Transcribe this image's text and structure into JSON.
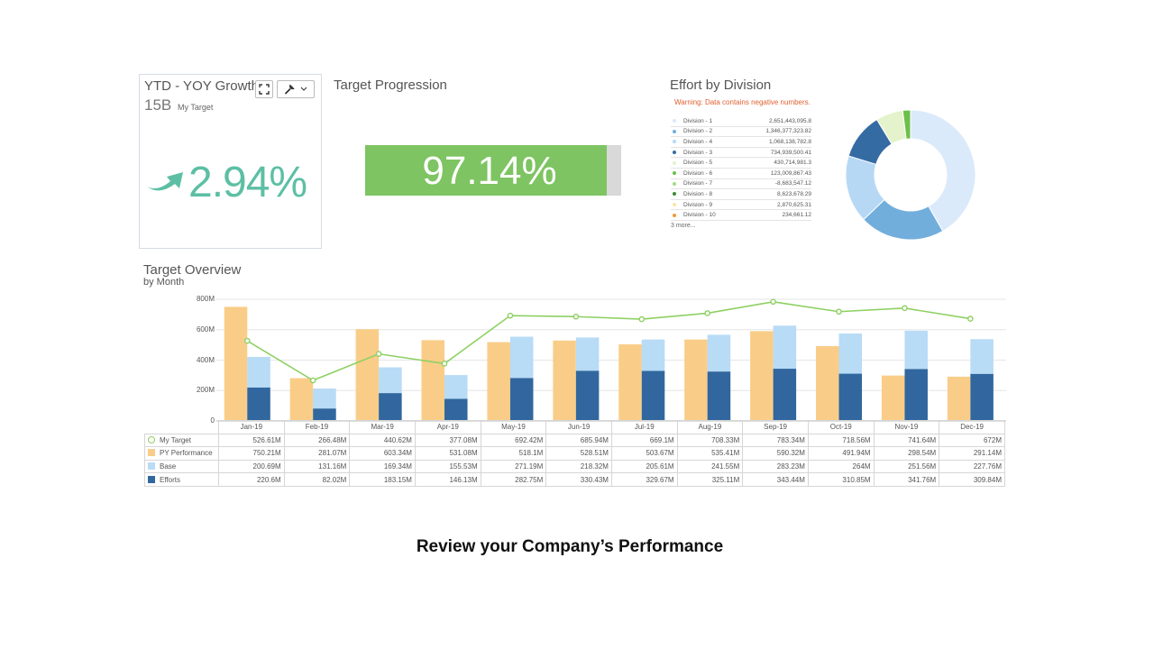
{
  "kpi": {
    "title": "YTD - YOY Growth",
    "target_value": "15B",
    "target_label": "My Target",
    "value": "2.94%",
    "color": "#5cbfa4"
  },
  "progression": {
    "title": "Target Progression",
    "value_label": "97.14%",
    "fraction": 0.9714,
    "fill_color": "#7ec462"
  },
  "effort": {
    "title": "Effort by Division",
    "warning": "Warning: Data contains negative numbers.",
    "more_label": "3 more...",
    "divisions": [
      {
        "name": "Division - 1",
        "value": "2,651,443,095.8",
        "color": "#dbeafa"
      },
      {
        "name": "Division - 2",
        "value": "1,346,377,323.82",
        "color": "#72aedc"
      },
      {
        "name": "Division - 4",
        "value": "1,068,138,782.8",
        "color": "#b6d8f5"
      },
      {
        "name": "Division - 3",
        "value": "734,939,500.41",
        "color": "#356ba3"
      },
      {
        "name": "Division - 5",
        "value": "430,714,981.3",
        "color": "#e4f3cc"
      },
      {
        "name": "Division - 6",
        "value": "123,009,867.43",
        "color": "#6cc04a"
      },
      {
        "name": "Division - 7",
        "value": "-8,683,547.12",
        "color": "#a6db84"
      },
      {
        "name": "Division - 8",
        "value": "8,623,678.29",
        "color": "#3c8c32"
      },
      {
        "name": "Division - 9",
        "value": "2,870,625.31",
        "color": "#fbe2aa"
      },
      {
        "name": "Division - 10",
        "value": "234,661.12",
        "color": "#f0983c"
      }
    ],
    "donut_values": [
      2651443095.8,
      1346377323.82,
      1068138782.8,
      734939500.41,
      430714981.3,
      123009867.43
    ]
  },
  "overview": {
    "title": "Target Overview",
    "subtitle": "by Month",
    "table_rows": [
      {
        "label": "My Target",
        "key": "target",
        "swatch": "ring"
      },
      {
        "label": "PY Performance",
        "key": "py",
        "swatch": "#f9cd88"
      },
      {
        "label": "Base",
        "key": "base",
        "swatch": "#b8dbf6"
      },
      {
        "label": "Efforts",
        "key": "efforts",
        "swatch": "#31679e"
      }
    ]
  },
  "chart_data": {
    "type": "bar",
    "categories": [
      "Jan-19",
      "Feb-19",
      "Mar-19",
      "Apr-19",
      "May-19",
      "Jun-19",
      "Jul-19",
      "Aug-19",
      "Sep-19",
      "Oct-19",
      "Nov-19",
      "Dec-19"
    ],
    "ylim": [
      0,
      800000000
    ],
    "yticks": [
      0,
      200000000,
      400000000,
      600000000,
      800000000
    ],
    "ytick_labels": [
      "0",
      "200M",
      "400M",
      "600M",
      "800M"
    ],
    "grid": true,
    "series": [
      {
        "name": "My Target",
        "kind": "line",
        "color": "#8ed063",
        "values": [
          526610000,
          266480000,
          440620000,
          377080000,
          692420000,
          685940000,
          669100000,
          708330000,
          783340000,
          718560000,
          741640000,
          672000000
        ],
        "labels": [
          "526.61M",
          "266.48M",
          "440.62M",
          "377.08M",
          "692.42M",
          "685.94M",
          "669.1M",
          "708.33M",
          "783.34M",
          "718.56M",
          "741.64M",
          "672M"
        ]
      },
      {
        "name": "PY Performance",
        "kind": "bar",
        "color": "#f9cd88",
        "values": [
          750210000,
          281070000,
          603340000,
          531080000,
          518100000,
          528510000,
          503670000,
          535410000,
          590320000,
          491940000,
          298540000,
          291140000
        ],
        "labels": [
          "750.21M",
          "281.07M",
          "603.34M",
          "531.08M",
          "518.1M",
          "528.51M",
          "503.67M",
          "535.41M",
          "590.32M",
          "491.94M",
          "298.54M",
          "291.14M"
        ]
      },
      {
        "name": "Base",
        "kind": "stack",
        "color": "#b8dbf6",
        "values": [
          200690000,
          131160000,
          169340000,
          155530000,
          271190000,
          218320000,
          205610000,
          241550000,
          283230000,
          264000000,
          251560000,
          227760000
        ],
        "labels": [
          "200.69M",
          "131.16M",
          "169.34M",
          "155.53M",
          "271.19M",
          "218.32M",
          "205.61M",
          "241.55M",
          "283.23M",
          "264M",
          "251.56M",
          "227.76M"
        ]
      },
      {
        "name": "Efforts",
        "kind": "stack",
        "color": "#31679e",
        "values": [
          220600000,
          82020000,
          183150000,
          146130000,
          282750000,
          330430000,
          329670000,
          325110000,
          343440000,
          310850000,
          341760000,
          309840000
        ],
        "labels": [
          "220.6M",
          "82.02M",
          "183.15M",
          "146.13M",
          "282.75M",
          "330.43M",
          "329.67M",
          "325.11M",
          "343.44M",
          "310.85M",
          "341.76M",
          "309.84M"
        ]
      }
    ]
  },
  "caption": "Review your Company’s Performance"
}
